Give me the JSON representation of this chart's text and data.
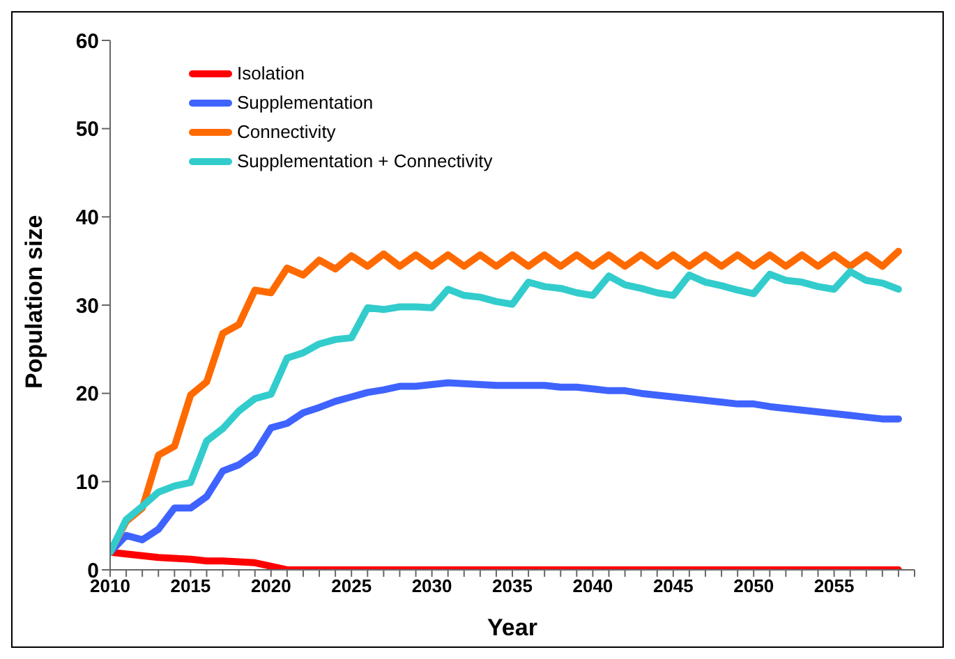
{
  "chart_data": {
    "type": "line",
    "xlabel": "Year",
    "ylabel": "Population size",
    "x": [
      2010,
      2011,
      2012,
      2013,
      2014,
      2015,
      2016,
      2017,
      2018,
      2019,
      2020,
      2021,
      2022,
      2023,
      2024,
      2025,
      2026,
      2027,
      2028,
      2029,
      2030,
      2031,
      2032,
      2033,
      2034,
      2035,
      2036,
      2037,
      2038,
      2039,
      2040,
      2041,
      2042,
      2043,
      2044,
      2045,
      2046,
      2047,
      2048,
      2049,
      2050,
      2051,
      2052,
      2053,
      2054,
      2055,
      2056,
      2057,
      2058,
      2059
    ],
    "series": [
      {
        "name": "Isolation",
        "color": "#ff0000",
        "values": [
          2,
          1.8,
          1.6,
          1.4,
          1.3,
          1.2,
          1.0,
          1.0,
          0.9,
          0.8,
          0.4,
          0,
          0,
          0,
          0,
          0,
          0,
          0,
          0,
          0,
          0,
          0,
          0,
          0,
          0,
          0,
          0,
          0,
          0,
          0,
          0,
          0,
          0,
          0,
          0,
          0,
          0,
          0,
          0,
          0,
          0,
          0,
          0,
          0,
          0,
          0,
          0,
          0,
          0,
          0
        ]
      },
      {
        "name": "Supplementation",
        "color": "#3f63ff",
        "values": [
          2,
          3.9,
          3.4,
          4.6,
          7,
          7,
          8.3,
          11.2,
          11.9,
          13.2,
          16.1,
          16.6,
          17.8,
          18.4,
          19.1,
          19.6,
          20.1,
          20.4,
          20.8,
          20.8,
          21,
          21.2,
          21.1,
          21,
          20.9,
          20.9,
          20.9,
          20.9,
          20.7,
          20.7,
          20.5,
          20.3,
          20.3,
          20,
          19.8,
          19.6,
          19.4,
          19.2,
          19,
          18.8,
          18.8,
          18.5,
          18.3,
          18.1,
          17.9,
          17.7,
          17.5,
          17.3,
          17.1,
          17.1
        ]
      },
      {
        "name": "Connectivity",
        "color": "#ff6a00",
        "values": [
          2,
          5.5,
          7,
          13,
          14,
          19.8,
          21.3,
          26.8,
          27.8,
          31.7,
          31.4,
          34.2,
          33.4,
          35.1,
          34.1,
          35.6,
          34.4,
          35.8,
          34.4,
          35.7,
          34.4,
          35.7,
          34.4,
          35.7,
          34.4,
          35.7,
          34.4,
          35.7,
          34.4,
          35.7,
          34.4,
          35.7,
          34.4,
          35.7,
          34.4,
          35.7,
          34.4,
          35.7,
          34.4,
          35.7,
          34.4,
          35.7,
          34.4,
          35.7,
          34.4,
          35.7,
          34.4,
          35.7,
          34.4,
          36.1
        ]
      },
      {
        "name": "Supplementation + Connectivity",
        "color": "#33cccc",
        "values": [
          2,
          5.7,
          7.2,
          8.8,
          9.5,
          9.9,
          14.6,
          16,
          18,
          19.4,
          19.9,
          24,
          24.6,
          25.6,
          26.1,
          26.3,
          29.7,
          29.5,
          29.8,
          29.8,
          29.7,
          31.8,
          31.1,
          30.9,
          30.4,
          30.1,
          32.6,
          32.1,
          31.9,
          31.4,
          31.1,
          33.3,
          32.3,
          31.9,
          31.4,
          31.1,
          33.4,
          32.6,
          32.2,
          31.7,
          31.3,
          33.5,
          32.8,
          32.6,
          32.1,
          31.8,
          33.8,
          32.8,
          32.5,
          31.8
        ]
      }
    ],
    "xlim": [
      2010,
      2060
    ],
    "xticks": [
      2010,
      {
        "value": 2011,
        "label": null
      },
      {
        "value": 2012,
        "label": null
      },
      {
        "value": 2013,
        "label": null
      },
      {
        "value": 2014,
        "label": null
      },
      2015,
      {
        "value": 2016,
        "label": null
      },
      {
        "value": 2017,
        "label": null
      },
      {
        "value": 2018,
        "label": null
      },
      {
        "value": 2019,
        "label": null
      },
      2020,
      {
        "value": 2021,
        "label": null
      },
      {
        "value": 2022,
        "label": null
      },
      {
        "value": 2023,
        "label": null
      },
      {
        "value": 2024,
        "label": null
      },
      2025,
      {
        "value": 2026,
        "label": null
      },
      {
        "value": 2027,
        "label": null
      },
      {
        "value": 2028,
        "label": null
      },
      {
        "value": 2029,
        "label": null
      },
      2030,
      {
        "value": 2031,
        "label": null
      },
      {
        "value": 2032,
        "label": null
      },
      {
        "value": 2033,
        "label": null
      },
      {
        "value": 2034,
        "label": null
      },
      2035,
      {
        "value": 2036,
        "label": null
      },
      {
        "value": 2037,
        "label": null
      },
      {
        "value": 2038,
        "label": null
      },
      {
        "value": 2039,
        "label": null
      },
      2040,
      {
        "value": 2041,
        "label": null
      },
      {
        "value": 2042,
        "label": null
      },
      {
        "value": 2043,
        "label": null
      },
      {
        "value": 2044,
        "label": null
      },
      2045,
      {
        "value": 2046,
        "label": null
      },
      {
        "value": 2047,
        "label": null
      },
      {
        "value": 2048,
        "label": null
      },
      {
        "value": 2049,
        "label": null
      },
      2050,
      {
        "value": 2051,
        "label": null
      },
      {
        "value": 2052,
        "label": null
      },
      {
        "value": 2053,
        "label": null
      },
      {
        "value": 2054,
        "label": null
      },
      2055,
      {
        "value": 2056,
        "label": null
      },
      {
        "value": 2057,
        "label": null
      },
      {
        "value": 2058,
        "label": null
      },
      {
        "value": 2059,
        "label": null
      },
      {
        "value": 2060,
        "label": null
      }
    ],
    "ylim": [
      0,
      60
    ],
    "yticks": [
      0,
      10,
      20,
      30,
      40,
      50,
      60
    ],
    "grid": false,
    "legend": "top left",
    "marker": "none",
    "line_style": "solid"
  }
}
